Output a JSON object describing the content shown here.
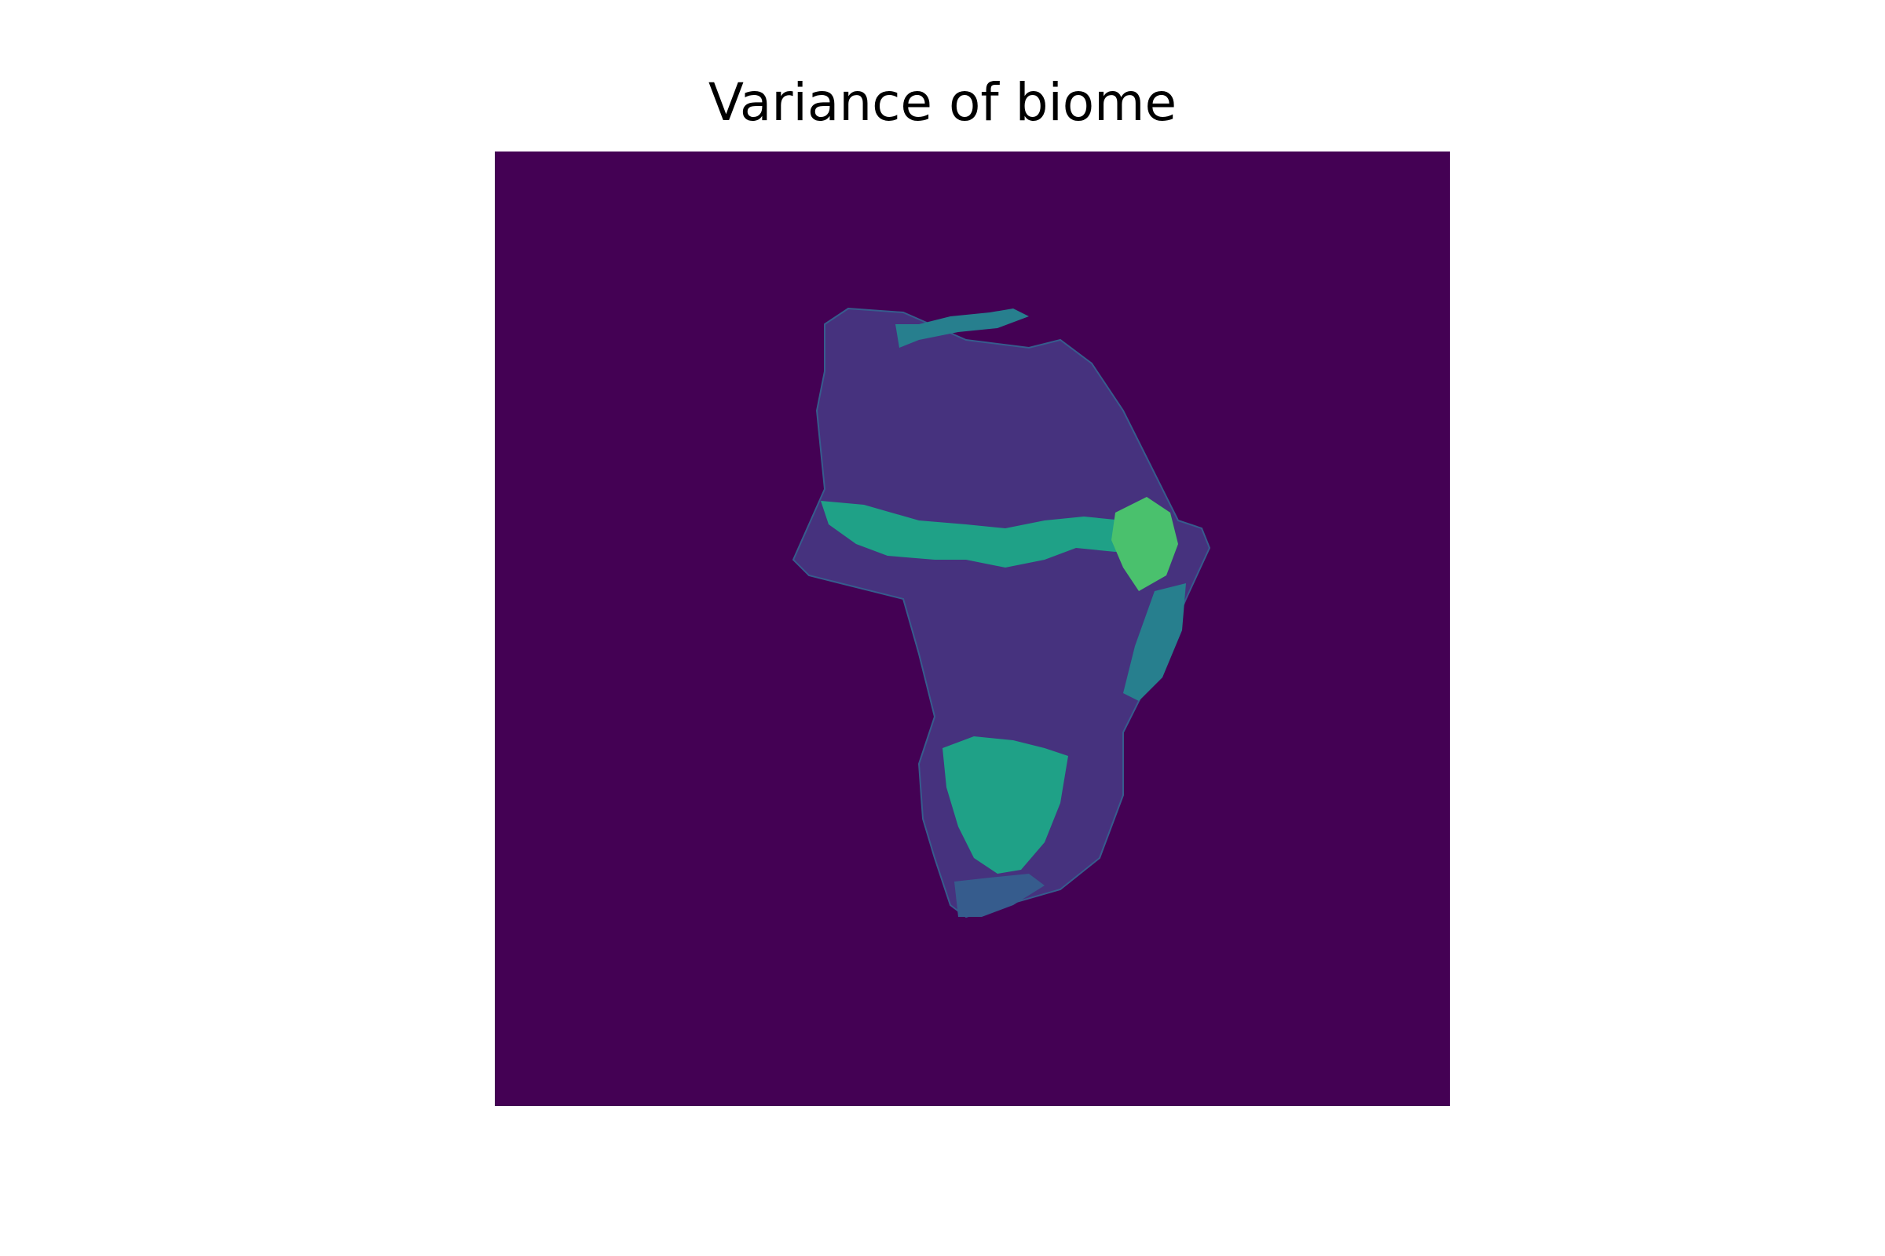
{
  "chart_data": {
    "type": "heatmap",
    "title": "Variance of biome",
    "xlabel": "",
    "ylabel": "",
    "axes": "off",
    "colormap": "viridis",
    "colors": {
      "background": "#440154",
      "low": "#46327e",
      "mid_low": "#365c8d",
      "mid": "#277f8e",
      "mid_high": "#1fa187",
      "high": "#4ac16d",
      "peak": "#a0da39"
    },
    "regions": [
      {
        "name": "africa-landmass",
        "level": "very-low"
      },
      {
        "name": "mediterranean-coast",
        "level": "mid"
      },
      {
        "name": "sahel-belt",
        "level": "mid-high"
      },
      {
        "name": "ethiopian-highlands",
        "level": "high"
      },
      {
        "name": "east-african-coast",
        "level": "mid"
      },
      {
        "name": "southern-africa-plateau",
        "level": "mid-high"
      },
      {
        "name": "cape-region",
        "level": "mid-low"
      }
    ]
  }
}
